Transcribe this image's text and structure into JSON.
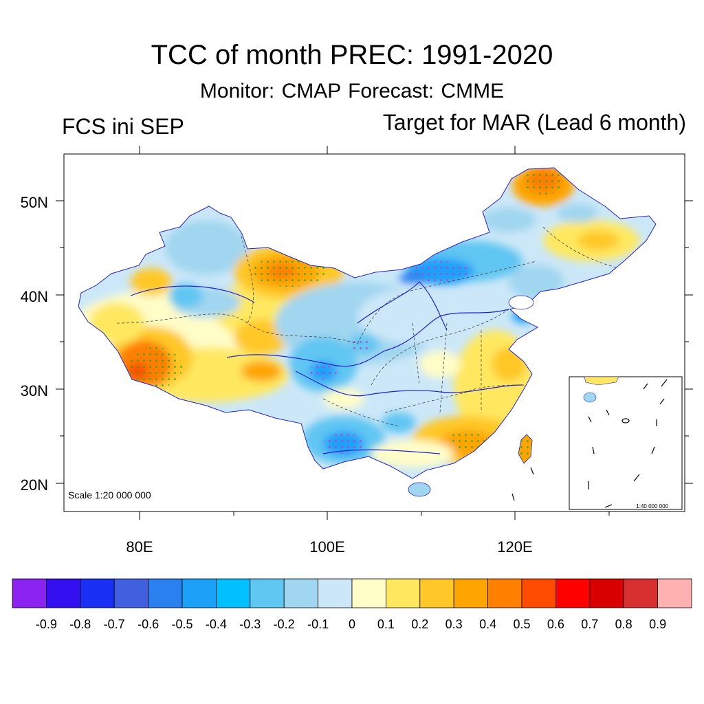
{
  "title": "TCC of month PREC: 1991-2020",
  "subtitle": "Monitor: CMAP   Forecast: CMME",
  "left_label": "FCS ini SEP",
  "right_label": "Target for MAR (Lead 6 month)",
  "scale_main": "Scale 1:20 000 000",
  "scale_inset": "1:40 000 000",
  "lat_labels": [
    "50N",
    "40N",
    "30N",
    "20N"
  ],
  "lon_labels": [
    "80E",
    "100E",
    "120E"
  ],
  "colorbar": {
    "colors": [
      "#8c22f0",
      "#3410f0",
      "#1a30f5",
      "#4060e0",
      "#2b80f0",
      "#1ca0f8",
      "#00c0ff",
      "#60c6f2",
      "#a0d6f0",
      "#cce8f8",
      "#fffdc8",
      "#ffe860",
      "#ffc828",
      "#ffa500",
      "#ff7f00",
      "#ff4c00",
      "#ff0000",
      "#d80000",
      "#d83030",
      "#ffb0b0"
    ],
    "labels": [
      "-0.9",
      "-0.8",
      "-0.7",
      "-0.6",
      "-0.5",
      "-0.4",
      "-0.3",
      "-0.2",
      "-0.1",
      "0",
      "0.1",
      "0.2",
      "0.3",
      "0.4",
      "0.5",
      "0.6",
      "0.7",
      "0.8",
      "0.9"
    ]
  }
}
